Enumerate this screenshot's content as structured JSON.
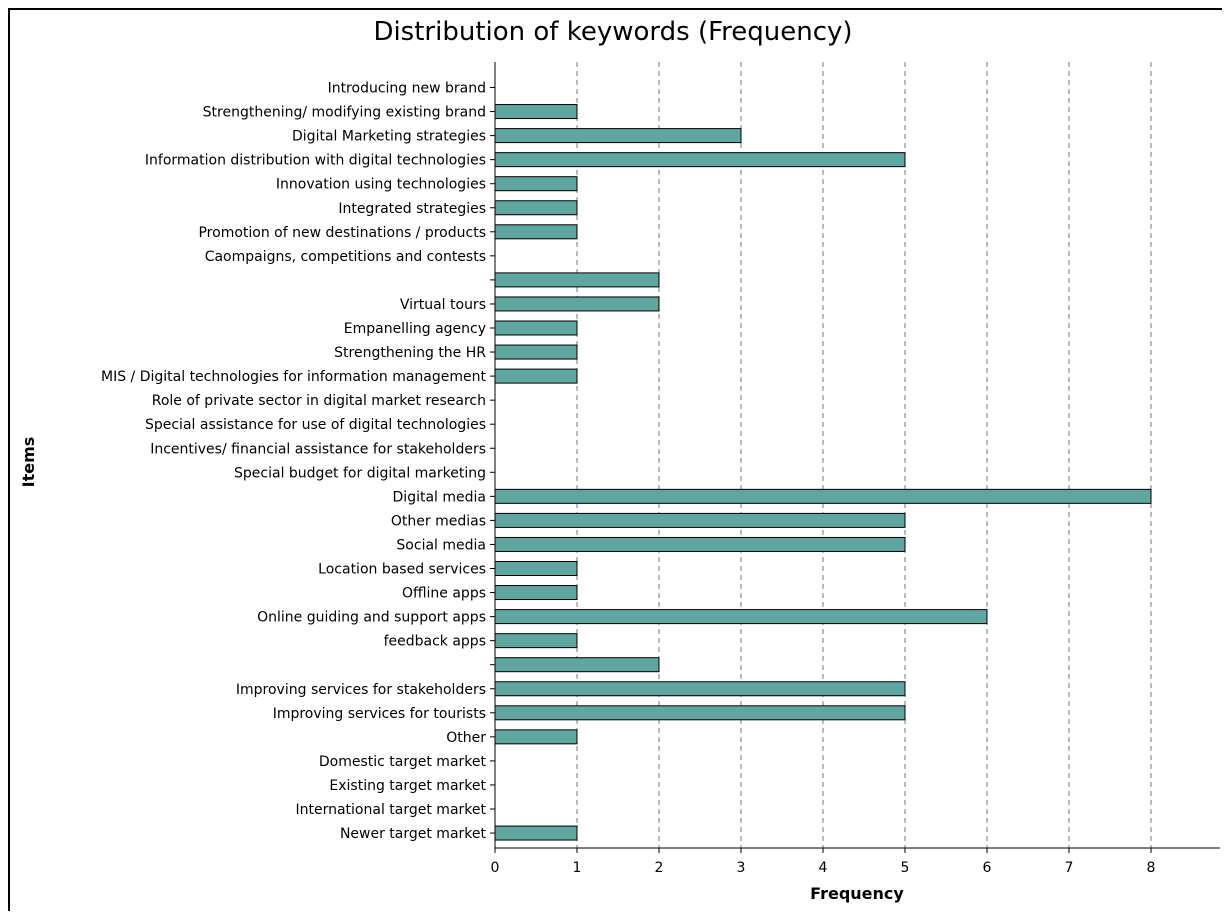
{
  "chart_data": {
    "type": "bar",
    "orientation": "horizontal",
    "title": "Distribution of keywords (Frequency)",
    "xlabel": "Frequency",
    "ylabel": "Items",
    "xlim": [
      0,
      8.8
    ],
    "xticks": [
      0,
      1,
      2,
      3,
      4,
      5,
      6,
      7,
      8
    ],
    "grid": "vertical dashed",
    "bar_color": "#5fa6a0",
    "categories": [
      "Introducing new brand",
      "Strengthening/ modifying existing brand",
      "Digital Marketing strategies",
      "Information distribution with digital technologies",
      "Innovation using technologies",
      "Integrated strategies",
      "Promotion of new destinations / products",
      "Caompaigns, competitions and contests",
      "",
      "Virtual tours",
      "Empanelling agency",
      "Strengthening the HR",
      "MIS / Digital technologies for information management",
      "Role of private sector in digital market research",
      "Special assistance for use of digital technologies",
      "Incentives/ financial assistance for stakeholders",
      "Special budget for digital marketing",
      "Digital media",
      "Other medias",
      "Social media",
      "Location based services",
      "Offline apps",
      "Online guiding and support apps",
      "feedback apps",
      "",
      "Improving services for stakeholders",
      "Improving services for tourists",
      "Other",
      "Domestic target market",
      "Existing target market",
      "International target market",
      "Newer target market"
    ],
    "values": [
      0,
      1,
      3,
      5,
      1,
      1,
      1,
      0,
      2,
      2,
      1,
      1,
      1,
      0,
      0,
      0,
      0,
      8,
      5,
      5,
      1,
      1,
      6,
      1,
      2,
      5,
      5,
      1,
      0,
      0,
      0,
      1
    ]
  }
}
